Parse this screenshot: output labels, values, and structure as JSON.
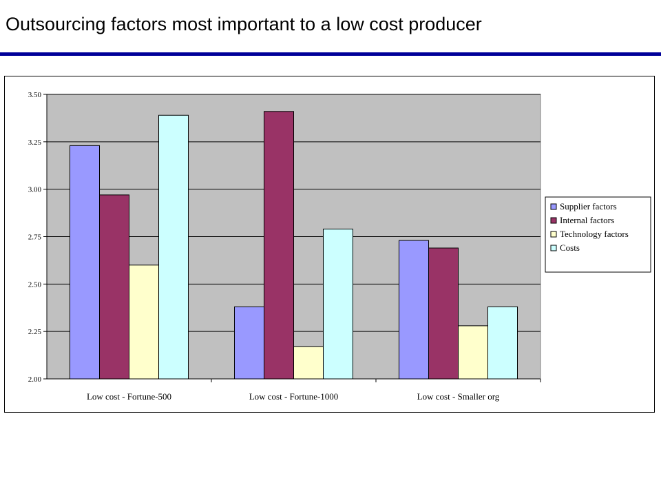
{
  "slide": {
    "title": "Outsourcing factors most important to a low cost producer"
  },
  "chart_data": {
    "type": "bar",
    "categories": [
      "Low cost - Fortune-500",
      "Low cost - Fortune-1000",
      "Low cost - Smaller org"
    ],
    "series": [
      {
        "name": "Supplier factors",
        "values": [
          3.23,
          2.38,
          2.73
        ],
        "color": "#9999ff"
      },
      {
        "name": "Internal factors",
        "values": [
          2.97,
          3.41,
          2.69
        ],
        "color": "#993366"
      },
      {
        "name": "Technology factors",
        "values": [
          2.6,
          2.17,
          2.28
        ],
        "color": "#ffffcc"
      },
      {
        "name": "Costs",
        "values": [
          3.39,
          2.79,
          2.38
        ],
        "color": "#ccffff"
      }
    ],
    "ylim": [
      2.0,
      3.5
    ],
    "yticks": [
      "2.00",
      "2.25",
      "2.50",
      "2.75",
      "3.00",
      "3.25",
      "3.50"
    ],
    "grid": true,
    "plot_background": "#c0c0c0",
    "legend_position": "right",
    "title": "",
    "xlabel": "",
    "ylabel": ""
  }
}
